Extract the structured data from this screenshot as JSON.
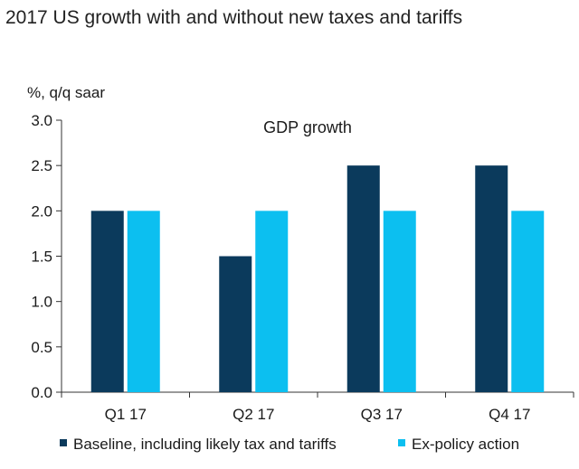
{
  "page_title": "2017 US growth with and without new taxes and tariffs",
  "chart_data": {
    "type": "bar",
    "title": "GDP growth",
    "ylabel": "%, q/q saar",
    "xlabel": "",
    "categories": [
      "Q1 17",
      "Q2 17",
      "Q3 17",
      "Q4 17"
    ],
    "series": [
      {
        "name": "Baseline, including likely tax and tariffs",
        "values": [
          2.0,
          1.5,
          2.5,
          2.5
        ],
        "color": "#0b3a5c"
      },
      {
        "name": "Ex-policy action",
        "values": [
          2.0,
          2.0,
          2.0,
          2.0
        ],
        "color": "#0cbff0"
      }
    ],
    "ylim": [
      0,
      3.0
    ],
    "yticks": [
      "0.0",
      "0.5",
      "1.0",
      "1.5",
      "2.0",
      "2.5",
      "3.0"
    ],
    "grid": false,
    "legend_position": "bottom"
  }
}
